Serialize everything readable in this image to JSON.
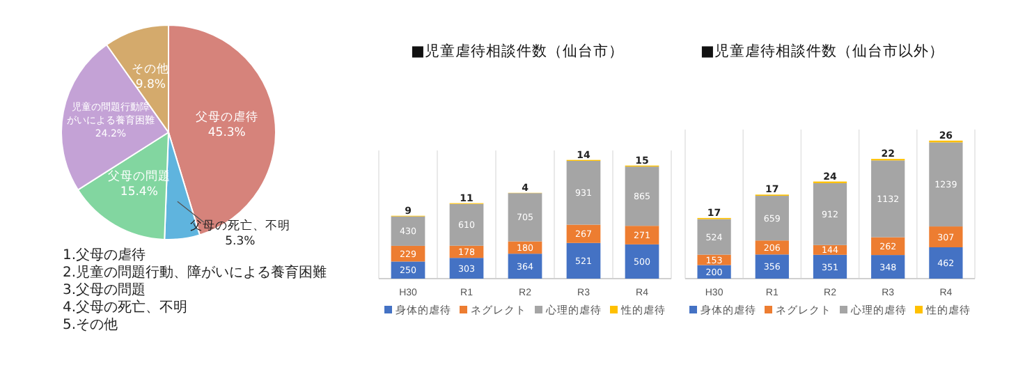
{
  "chart_data": [
    {
      "type": "pie",
      "categories": [
        "父母の虐待",
        "父母の死亡、不明",
        "父母の問題",
        "児童の問題行動障がいによる養育困難",
        "その他"
      ],
      "values": [
        45.3,
        5.3,
        15.4,
        24.2,
        9.8
      ],
      "value_labels": [
        "45.3%",
        "5.3%",
        "15.4%",
        "24.2%",
        "9.8%"
      ],
      "colors": [
        "#d6837b",
        "#5fb4de",
        "#82d6a0",
        "#c4a2d6",
        "#d4aa6c"
      ],
      "annotations": [
        "1.父母の虐待",
        "2.児童の問題行動、障がいによる養育困難",
        "3.父母の問題",
        "4.父母の死亡、不明",
        "5.その他"
      ]
    },
    {
      "type": "bar",
      "title": "■児童虐待相談件数（仙台市）",
      "categories": [
        "H30",
        "R1",
        "R2",
        "R3",
        "R4"
      ],
      "stacked": true,
      "data_labels": true,
      "grid": "x",
      "legend": "bottom",
      "series": [
        {
          "name": "身体的虐待",
          "color": "#4472c4",
          "values": [
            250,
            303,
            364,
            521,
            500
          ]
        },
        {
          "name": "ネグレクト",
          "color": "#ed7d31",
          "values": [
            229,
            178,
            180,
            267,
            271
          ]
        },
        {
          "name": "心理的虐待",
          "color": "#a5a5a5",
          "values": [
            430,
            610,
            705,
            931,
            865
          ]
        },
        {
          "name": "性的虐待",
          "color": "#ffc000",
          "values": [
            9,
            11,
            4,
            14,
            15
          ]
        }
      ]
    },
    {
      "type": "bar",
      "title": "■児童虐待相談件数（仙台市以外）",
      "categories": [
        "H30",
        "R1",
        "R2",
        "R3",
        "R4"
      ],
      "stacked": true,
      "data_labels": true,
      "grid": "x",
      "legend": "bottom",
      "series": [
        {
          "name": "身体的虐待",
          "color": "#4472c4",
          "values": [
            200,
            356,
            351,
            348,
            462
          ]
        },
        {
          "name": "ネグレクト",
          "color": "#ed7d31",
          "values": [
            153,
            206,
            144,
            262,
            307
          ]
        },
        {
          "name": "心理的虐待",
          "color": "#a5a5a5",
          "values": [
            524,
            659,
            912,
            1132,
            1239
          ]
        },
        {
          "name": "性的虐待",
          "color": "#ffc000",
          "values": [
            17,
            17,
            24,
            22,
            26
          ]
        }
      ]
    }
  ]
}
